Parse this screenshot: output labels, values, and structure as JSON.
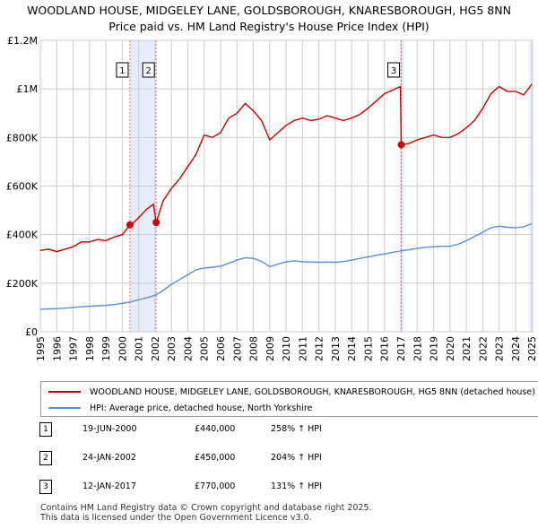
{
  "title_line1": "WOODLAND HOUSE, MIDGELEY LANE, GOLDSBOROUGH, KNARESBOROUGH, HG5 8NN",
  "title_line2": "Price paid vs. HM Land Registry's House Price Index (HPI)",
  "colors": {
    "property": "#c00000",
    "hpi": "#5b8fd0",
    "marker": "#cc0000",
    "vline": "#e07070",
    "shade": "#dde6f5"
  },
  "chart_data": {
    "type": "line",
    "xlim": [
      1995.0,
      2025.1
    ],
    "ylim": [
      0,
      1200000
    ],
    "y_ticks": [
      {
        "value": 0,
        "label": "£0"
      },
      {
        "value": 200000,
        "label": "£200K"
      },
      {
        "value": 400000,
        "label": "£400K"
      },
      {
        "value": 600000,
        "label": "£600K"
      },
      {
        "value": 800000,
        "label": "£800K"
      },
      {
        "value": 1000000,
        "label": "£1M"
      },
      {
        "value": 1200000,
        "label": "£1.2M"
      }
    ],
    "x_ticks": [
      "1995",
      "1996",
      "1997",
      "1998",
      "1999",
      "2000",
      "2001",
      "2002",
      "2003",
      "2004",
      "2005",
      "2006",
      "2007",
      "2008",
      "2009",
      "2010",
      "2011",
      "2012",
      "2013",
      "2014",
      "2015",
      "2016",
      "2017",
      "2018",
      "2019",
      "2020",
      "2021",
      "2022",
      "2023",
      "2024",
      "2025"
    ],
    "shaded_regions": [
      [
        2000.47,
        2002.07
      ],
      [
        2017.03,
        2017.2
      ],
      [
        2024.85,
        2025.1
      ]
    ],
    "series": [
      {
        "name": "WOODLAND HOUSE, MIDGELEY LANE, GOLDSBOROUGH, KNARESBOROUGH, HG5 8NN (detached house)",
        "color": "#c00000",
        "points": [
          [
            1995.0,
            335000
          ],
          [
            1995.5,
            340000
          ],
          [
            1996.0,
            330000
          ],
          [
            1996.5,
            340000
          ],
          [
            1997.0,
            350000
          ],
          [
            1997.5,
            370000
          ],
          [
            1998.0,
            370000
          ],
          [
            1998.5,
            380000
          ],
          [
            1999.0,
            375000
          ],
          [
            1999.5,
            390000
          ],
          [
            2000.0,
            400000
          ],
          [
            2000.47,
            440000
          ],
          [
            2000.7,
            450000
          ],
          [
            2001.0,
            470000
          ],
          [
            2001.5,
            505000
          ],
          [
            2001.9,
            525000
          ],
          [
            2002.07,
            450000
          ],
          [
            2002.5,
            540000
          ],
          [
            2003.0,
            590000
          ],
          [
            2003.5,
            630000
          ],
          [
            2004.0,
            680000
          ],
          [
            2004.5,
            730000
          ],
          [
            2005.0,
            810000
          ],
          [
            2005.5,
            800000
          ],
          [
            2006.0,
            820000
          ],
          [
            2006.5,
            880000
          ],
          [
            2007.0,
            900000
          ],
          [
            2007.5,
            940000
          ],
          [
            2008.0,
            910000
          ],
          [
            2008.5,
            870000
          ],
          [
            2009.0,
            790000
          ],
          [
            2009.5,
            820000
          ],
          [
            2010.0,
            850000
          ],
          [
            2010.5,
            870000
          ],
          [
            2011.0,
            880000
          ],
          [
            2011.5,
            870000
          ],
          [
            2012.0,
            875000
          ],
          [
            2012.5,
            890000
          ],
          [
            2013.0,
            880000
          ],
          [
            2013.5,
            870000
          ],
          [
            2014.0,
            880000
          ],
          [
            2014.5,
            895000
          ],
          [
            2015.0,
            920000
          ],
          [
            2015.5,
            950000
          ],
          [
            2016.0,
            980000
          ],
          [
            2016.5,
            995000
          ],
          [
            2016.98,
            1010000
          ],
          [
            2017.03,
            770000
          ],
          [
            2017.5,
            775000
          ],
          [
            2018.0,
            790000
          ],
          [
            2018.5,
            800000
          ],
          [
            2019.0,
            810000
          ],
          [
            2019.5,
            800000
          ],
          [
            2020.0,
            800000
          ],
          [
            2020.5,
            815000
          ],
          [
            2021.0,
            840000
          ],
          [
            2021.5,
            870000
          ],
          [
            2022.0,
            920000
          ],
          [
            2022.5,
            980000
          ],
          [
            2023.0,
            1010000
          ],
          [
            2023.5,
            990000
          ],
          [
            2024.0,
            990000
          ],
          [
            2024.5,
            975000
          ],
          [
            2025.0,
            1020000
          ]
        ]
      },
      {
        "name": "HPI: Average price, detached house, North Yorkshire",
        "color": "#5b8fd0",
        "points": [
          [
            1995.0,
            93000
          ],
          [
            1995.5,
            94000
          ],
          [
            1996.0,
            95000
          ],
          [
            1996.5,
            97000
          ],
          [
            1997.0,
            100000
          ],
          [
            1997.5,
            103000
          ],
          [
            1998.0,
            105000
          ],
          [
            1998.5,
            107000
          ],
          [
            1999.0,
            109000
          ],
          [
            1999.5,
            112000
          ],
          [
            2000.0,
            117000
          ],
          [
            2000.5,
            123000
          ],
          [
            2001.0,
            131000
          ],
          [
            2001.5,
            140000
          ],
          [
            2002.0,
            150000
          ],
          [
            2002.5,
            170000
          ],
          [
            2003.0,
            195000
          ],
          [
            2003.5,
            215000
          ],
          [
            2004.0,
            235000
          ],
          [
            2004.5,
            255000
          ],
          [
            2005.0,
            262000
          ],
          [
            2005.5,
            266000
          ],
          [
            2006.0,
            270000
          ],
          [
            2006.5,
            282000
          ],
          [
            2007.0,
            295000
          ],
          [
            2007.5,
            305000
          ],
          [
            2008.0,
            302000
          ],
          [
            2008.5,
            290000
          ],
          [
            2009.0,
            268000
          ],
          [
            2009.5,
            278000
          ],
          [
            2010.0,
            288000
          ],
          [
            2010.5,
            292000
          ],
          [
            2011.0,
            288000
          ],
          [
            2011.5,
            287000
          ],
          [
            2012.0,
            286000
          ],
          [
            2012.5,
            287000
          ],
          [
            2013.0,
            286000
          ],
          [
            2013.5,
            289000
          ],
          [
            2014.0,
            295000
          ],
          [
            2014.5,
            302000
          ],
          [
            2015.0,
            308000
          ],
          [
            2015.5,
            315000
          ],
          [
            2016.0,
            320000
          ],
          [
            2016.5,
            327000
          ],
          [
            2017.0,
            333000
          ],
          [
            2017.5,
            338000
          ],
          [
            2018.0,
            343000
          ],
          [
            2018.5,
            348000
          ],
          [
            2019.0,
            350000
          ],
          [
            2019.5,
            352000
          ],
          [
            2020.0,
            352000
          ],
          [
            2020.5,
            360000
          ],
          [
            2021.0,
            375000
          ],
          [
            2021.5,
            392000
          ],
          [
            2022.0,
            410000
          ],
          [
            2022.5,
            428000
          ],
          [
            2023.0,
            435000
          ],
          [
            2023.5,
            430000
          ],
          [
            2024.0,
            428000
          ],
          [
            2024.5,
            432000
          ],
          [
            2025.0,
            445000
          ]
        ]
      }
    ],
    "sale_markers": [
      {
        "label": "1",
        "x": 2000.47,
        "y": 440000
      },
      {
        "label": "2",
        "x": 2002.07,
        "y": 450000
      },
      {
        "label": "3",
        "x": 2017.03,
        "y": 770000
      }
    ]
  },
  "legend": {
    "property_label": "WOODLAND HOUSE, MIDGELEY LANE, GOLDSBOROUGH, KNARESBOROUGH, HG5 8NN (detached house)",
    "hpi_label": "HPI: Average price, detached house, North Yorkshire"
  },
  "sales": [
    {
      "num": "1",
      "date": "19-JUN-2000",
      "price": "£440,000",
      "hpi": "258% ↑ HPI"
    },
    {
      "num": "2",
      "date": "24-JAN-2002",
      "price": "£450,000",
      "hpi": "204% ↑ HPI"
    },
    {
      "num": "3",
      "date": "12-JAN-2017",
      "price": "£770,000",
      "hpi": "131% ↑ HPI"
    }
  ],
  "footer_line1": "Contains HM Land Registry data © Crown copyright and database right 2025.",
  "footer_line2": "This data is licensed under the Open Government Licence v3.0."
}
